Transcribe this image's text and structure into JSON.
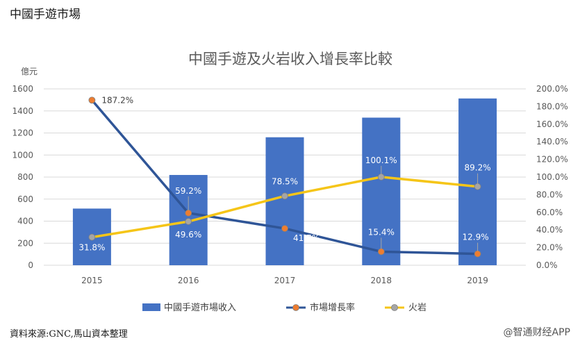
{
  "header": {
    "title": "中國手遊市場"
  },
  "footer": {
    "source": "資料來源:GNC,馬山資本整理",
    "watermark": "@智通财经APP"
  },
  "chart_data": {
    "type": "bar",
    "title": "中國手遊及火岩收入增長率比較",
    "ylabel": "億元",
    "categories": [
      "2015",
      "2016",
      "2017",
      "2018",
      "2019"
    ],
    "ylim": [
      0,
      1600
    ],
    "y_ticks": [
      "0",
      "200",
      "400",
      "600",
      "800",
      "1000",
      "1200",
      "1400",
      "1600"
    ],
    "y2lim": [
      0,
      200
    ],
    "y2_ticks": [
      "0.0%",
      "20.0%",
      "40.0%",
      "60.0%",
      "80.0%",
      "100.0%",
      "120.0%",
      "140.0%",
      "160.0%",
      "180.0%",
      "200.0%"
    ],
    "bar_series": {
      "name": "中國手遊市場收入",
      "color": "#4472C4",
      "values": [
        514,
        819,
        1161,
        1339,
        1513
      ]
    },
    "line_series": [
      {
        "name": "市場增長率",
        "color": "#2F5597",
        "marker": "#ED7D31",
        "values": [
          187.2,
          59.2,
          41.7,
          15.4,
          12.9
        ],
        "labels": [
          "187.2%",
          "59.2%",
          "41.7%",
          "15.4%",
          "12.9%"
        ]
      },
      {
        "name": "火岩",
        "color": "#F5C518",
        "marker": "#A5A5A5",
        "values": [
          31.8,
          49.6,
          78.5,
          100.1,
          89.2
        ],
        "labels": [
          "31.8%",
          "49.6%",
          "78.5%",
          "100.1%",
          "89.2%"
        ]
      }
    ],
    "grid": true,
    "legend_position": "bottom"
  }
}
